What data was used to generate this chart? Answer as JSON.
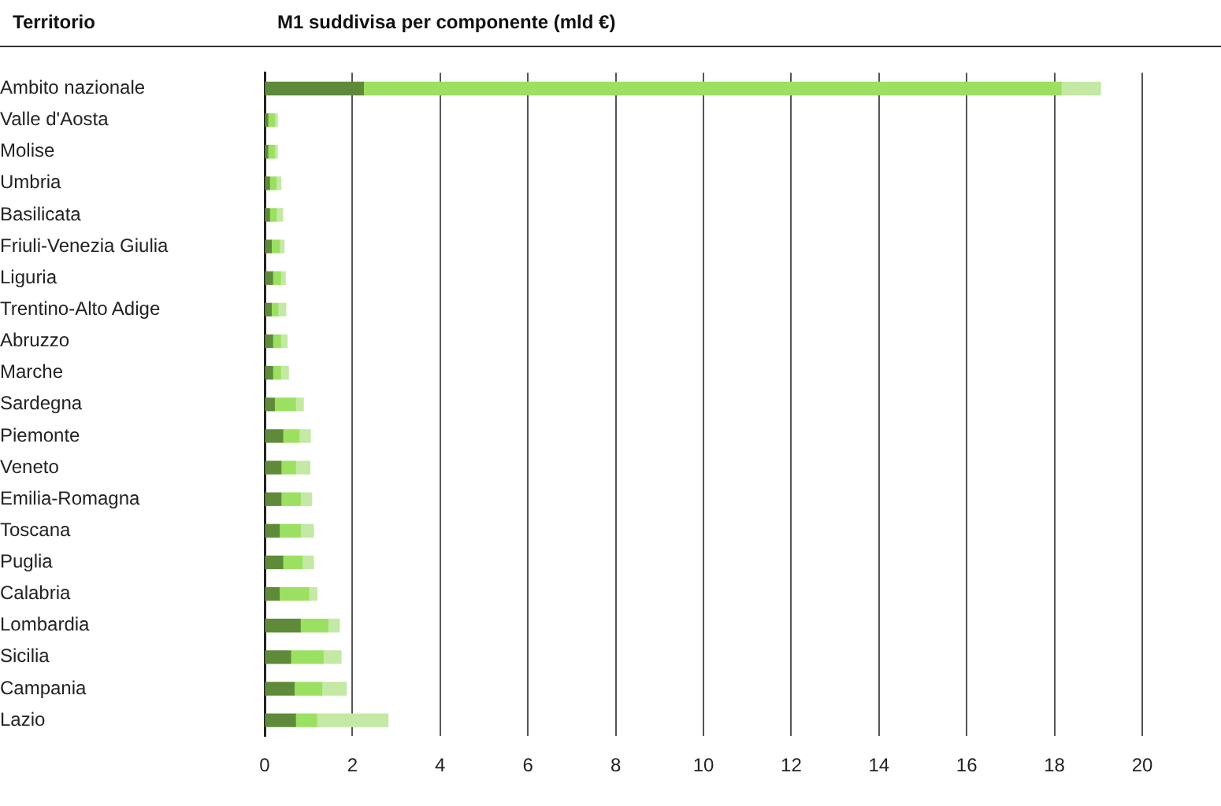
{
  "chart_data": {
    "type": "bar",
    "orientation": "horizontal",
    "stacked": true,
    "title": "M1 suddivisa per componente (mld €)",
    "ylabel": "Territorio",
    "categories": [
      "Ambito nazionale",
      "Valle d'Aosta",
      "Molise",
      "Umbria",
      "Basilicata",
      "Friuli-Venezia Giulia",
      "Liguria",
      "Trentino-Alto Adige",
      "Abruzzo",
      "Marche",
      "Sardegna",
      "Piemonte",
      "Veneto",
      "Emilia-Romagna",
      "Toscana",
      "Puglia",
      "Calabria",
      "Lombardia",
      "Sicilia",
      "Campania",
      "Lazio"
    ],
    "series": [
      {
        "color": "#5f8a3a",
        "values": [
          2.25,
          0.07,
          0.07,
          0.11,
          0.11,
          0.15,
          0.18,
          0.15,
          0.18,
          0.18,
          0.22,
          0.41,
          0.37,
          0.37,
          0.33,
          0.41,
          0.33,
          0.81,
          0.59,
          0.67,
          0.7
        ]
      },
      {
        "color": "#9be060",
        "values": [
          15.9,
          0.15,
          0.15,
          0.15,
          0.15,
          0.18,
          0.18,
          0.15,
          0.18,
          0.18,
          0.48,
          0.37,
          0.33,
          0.44,
          0.48,
          0.44,
          0.67,
          0.63,
          0.74,
          0.63,
          0.48
        ]
      },
      {
        "color": "#c3e9a4",
        "values": [
          0.9,
          0.07,
          0.07,
          0.11,
          0.15,
          0.11,
          0.11,
          0.18,
          0.15,
          0.18,
          0.18,
          0.26,
          0.33,
          0.26,
          0.3,
          0.26,
          0.19,
          0.26,
          0.41,
          0.56,
          1.63
        ]
      }
    ],
    "xlim": [
      0,
      20
    ],
    "xticks": [
      0,
      2,
      4,
      6,
      8,
      10,
      12,
      14,
      16,
      18,
      20
    ],
    "grid": "x",
    "legend": false
  }
}
